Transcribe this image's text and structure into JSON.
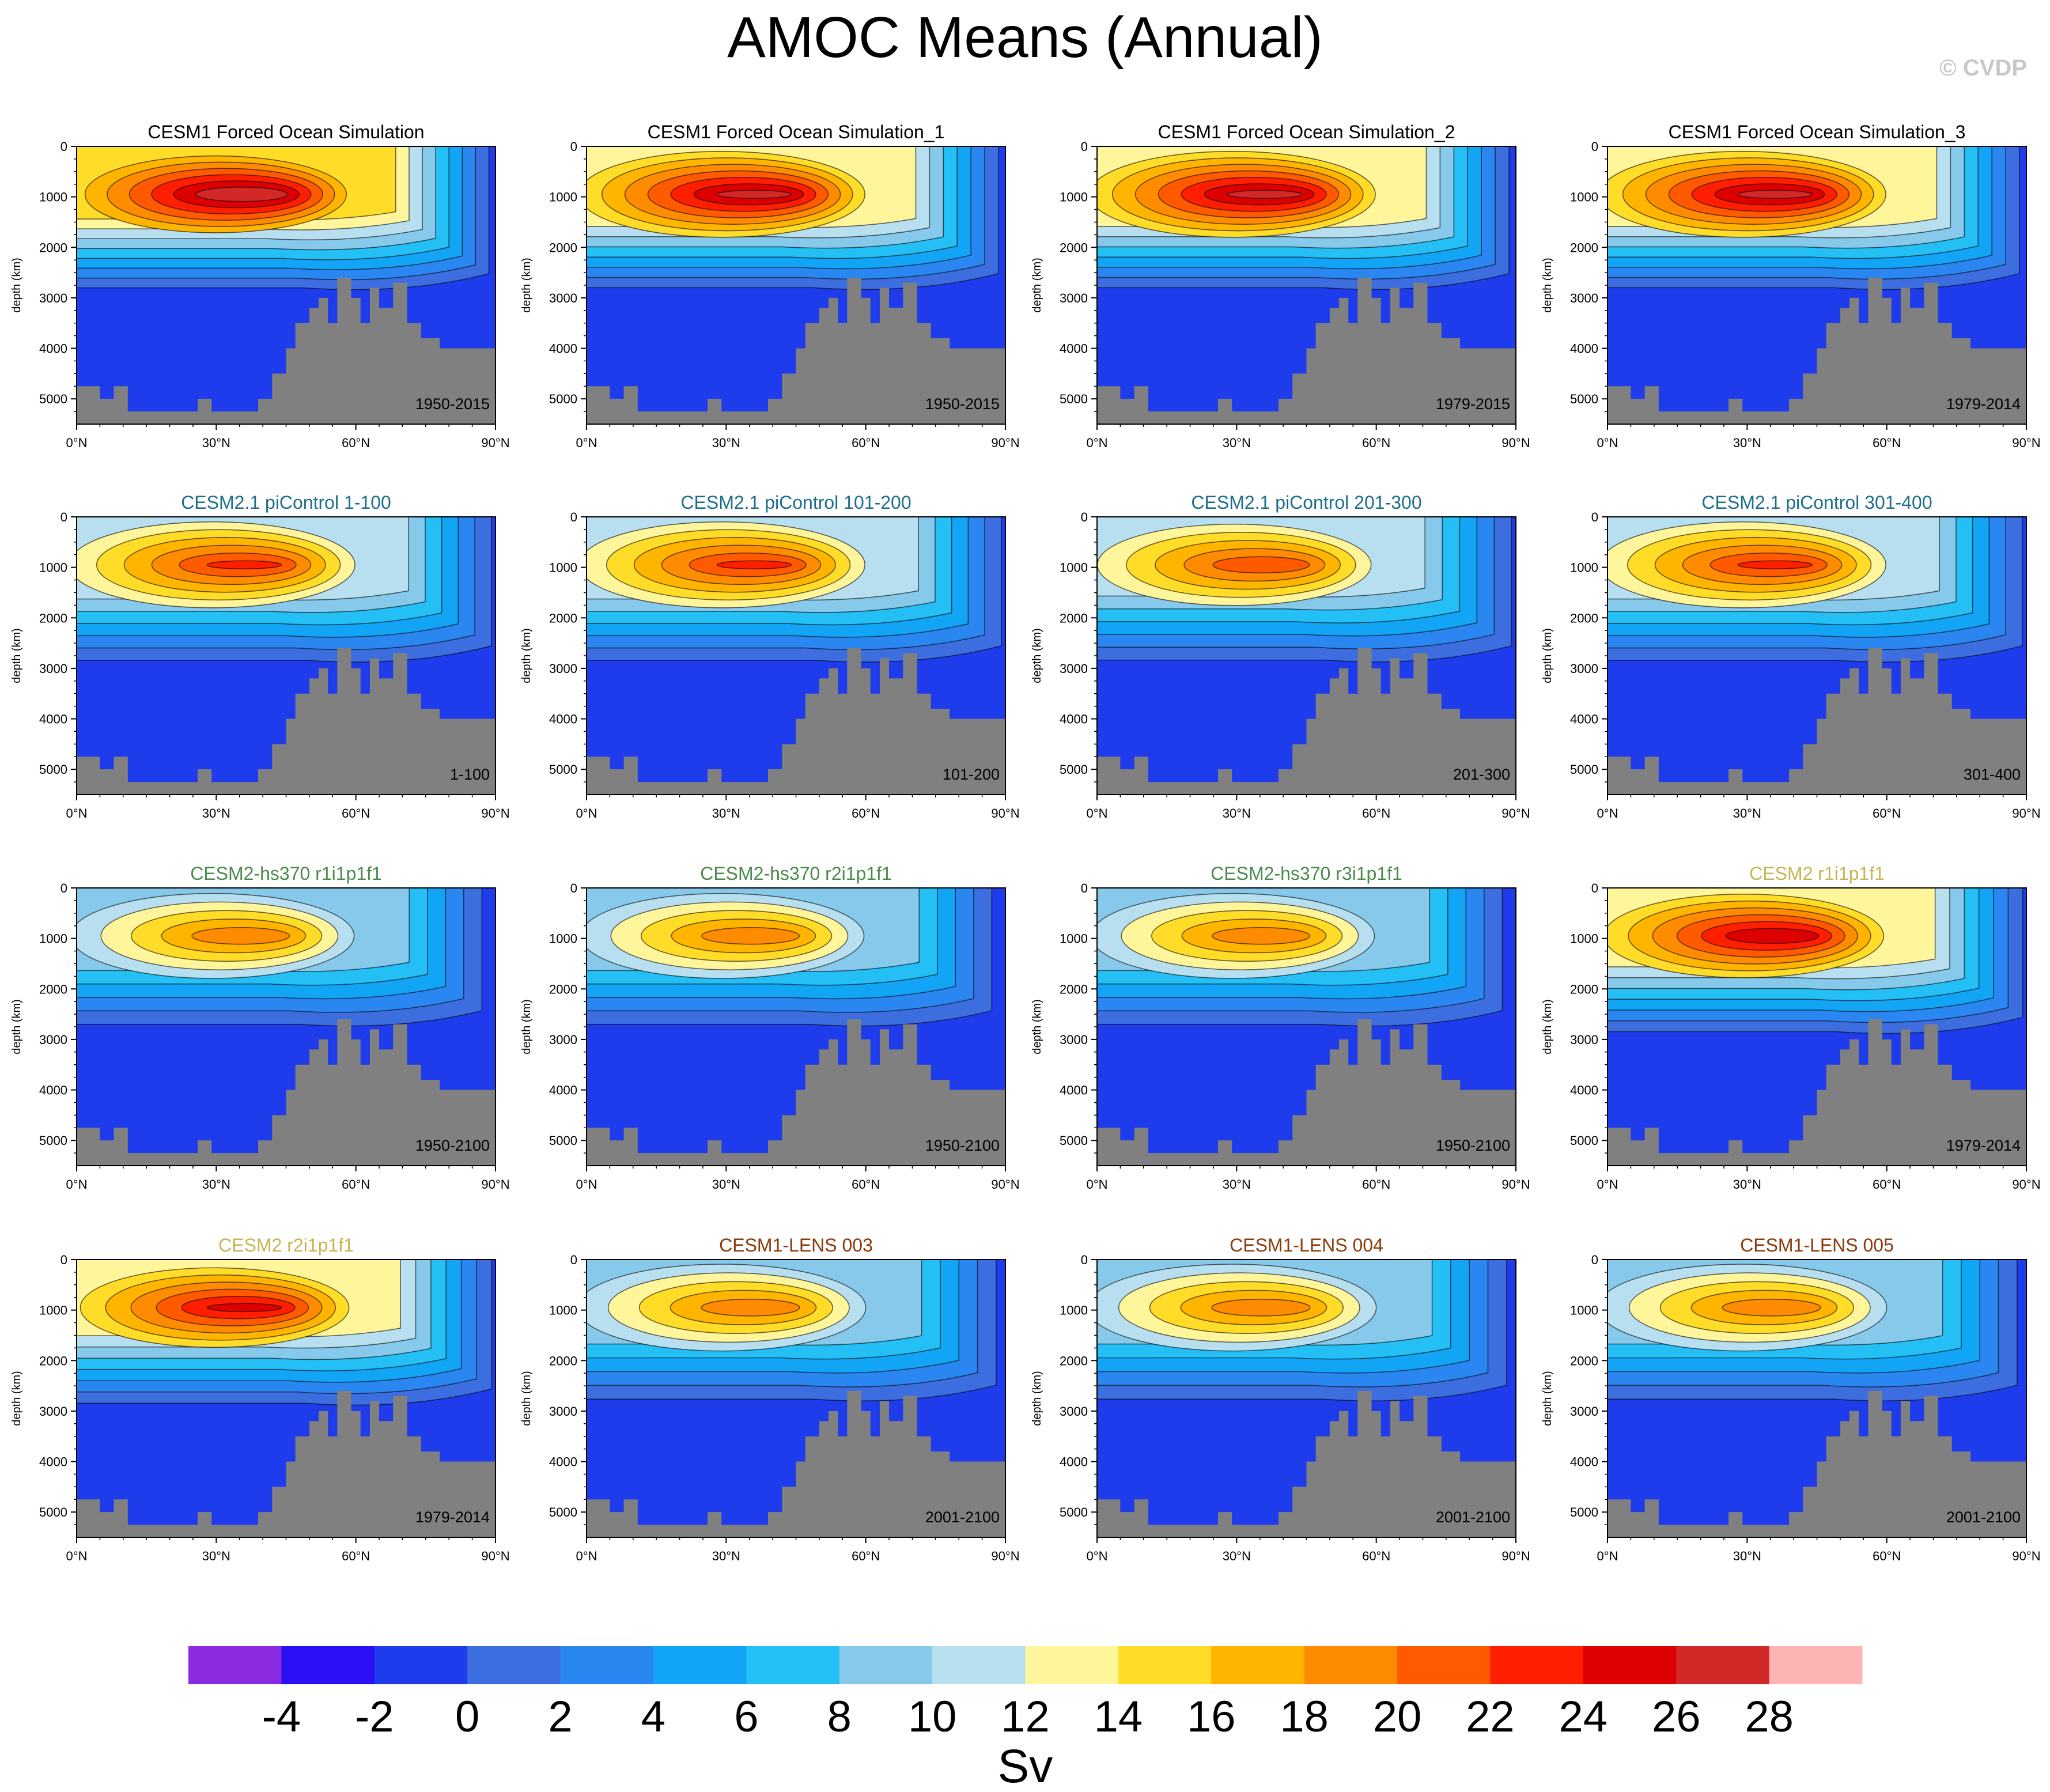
{
  "title": "AMOC Means (Annual)",
  "credit": "© CVDP",
  "chart_data": {
    "type": "contour",
    "title": "AMOC Means (Annual)",
    "xlabel": "",
    "ylabel": "depth (km)",
    "xlim": [
      0,
      90
    ],
    "ylim": [
      5500,
      0
    ],
    "x_ticks": [
      "0°N",
      "30°N",
      "60°N",
      "90°N"
    ],
    "y_ticks": [
      "0",
      "1000",
      "2000",
      "3000",
      "4000",
      "5000"
    ],
    "colorbar": {
      "label": "Sv",
      "levels": [
        -4,
        -2,
        0,
        2,
        4,
        6,
        8,
        10,
        12,
        14,
        16,
        18,
        20,
        22,
        24,
        26,
        28
      ],
      "tick_labels": [
        "-4",
        "-2",
        "0",
        "2",
        "4",
        "6",
        "8",
        "10",
        "12",
        "14",
        "16",
        "18",
        "20",
        "22",
        "24",
        "26",
        "28"
      ],
      "colors": [
        "#8a2be2",
        "#2b10f5",
        "#1e3ceb",
        "#3d6ee0",
        "#2a86f0",
        "#12a4f5",
        "#23bff5",
        "#87c9ea",
        "#b8dff0",
        "#fff59a",
        "#ffdc28",
        "#ffb400",
        "#ff8c00",
        "#ff5a00",
        "#ff1e00",
        "#dc0000",
        "#d22828",
        "#ffb4b4"
      ]
    },
    "panels": [
      {
        "title": "CESM1 Forced Ocean Simulation",
        "title_color": "#000000",
        "period": "1950-2015",
        "max_sv": 27,
        "deep_sv": -1
      },
      {
        "title": "CESM1 Forced Ocean Simulation_1",
        "title_color": "#000000",
        "period": "1950-2015",
        "max_sv": 26,
        "deep_sv": -1
      },
      {
        "title": "CESM1 Forced Ocean Simulation_2",
        "title_color": "#000000",
        "period": "1979-2015",
        "max_sv": 26,
        "deep_sv": -1
      },
      {
        "title": "CESM1 Forced Ocean Simulation_3",
        "title_color": "#000000",
        "period": "1979-2014",
        "max_sv": 26,
        "deep_sv": -1
      },
      {
        "title": "CESM2.1 piControl 1-100",
        "title_color": "#1c6e8c",
        "period": "1-100",
        "max_sv": 22,
        "deep_sv": -0.5
      },
      {
        "title": "CESM2.1 piControl 101-200",
        "title_color": "#1c6e8c",
        "period": "101-200",
        "max_sv": 22,
        "deep_sv": -0.5
      },
      {
        "title": "CESM2.1 piControl 201-300",
        "title_color": "#1c6e8c",
        "period": "201-300",
        "max_sv": 21,
        "deep_sv": -0.5
      },
      {
        "title": "CESM2.1 piControl 301-400",
        "title_color": "#1c6e8c",
        "period": "301-400",
        "max_sv": 22,
        "deep_sv": -0.5
      },
      {
        "title": "CESM2-hs370 r1i1p1f1",
        "title_color": "#4a8a4a",
        "period": "1950-2100",
        "max_sv": 19,
        "deep_sv": -1.5
      },
      {
        "title": "CESM2-hs370 r2i1p1f1",
        "title_color": "#4a8a4a",
        "period": "1950-2100",
        "max_sv": 19,
        "deep_sv": -1.5
      },
      {
        "title": "CESM2-hs370 r3i1p1f1",
        "title_color": "#4a8a4a",
        "period": "1950-2100",
        "max_sv": 19,
        "deep_sv": -1.5
      },
      {
        "title": "CESM2 r1i1p1f1",
        "title_color": "#c8b450",
        "period": "1979-2014",
        "max_sv": 25,
        "deep_sv": -0.5
      },
      {
        "title": "CESM2 r2i1p1f1",
        "title_color": "#c8b450",
        "period": "1979-2014",
        "max_sv": 24,
        "deep_sv": -0.5
      },
      {
        "title": "CESM1-LENS 003",
        "title_color": "#8b3a0a",
        "period": "2001-2100",
        "max_sv": 19,
        "deep_sv": -1
      },
      {
        "title": "CESM1-LENS 004",
        "title_color": "#8b3a0a",
        "period": "2001-2100",
        "max_sv": 19,
        "deep_sv": -1
      },
      {
        "title": "CESM1-LENS 005",
        "title_color": "#8b3a0a",
        "period": "2001-2100",
        "max_sv": 19,
        "deep_sv": -1
      }
    ]
  }
}
